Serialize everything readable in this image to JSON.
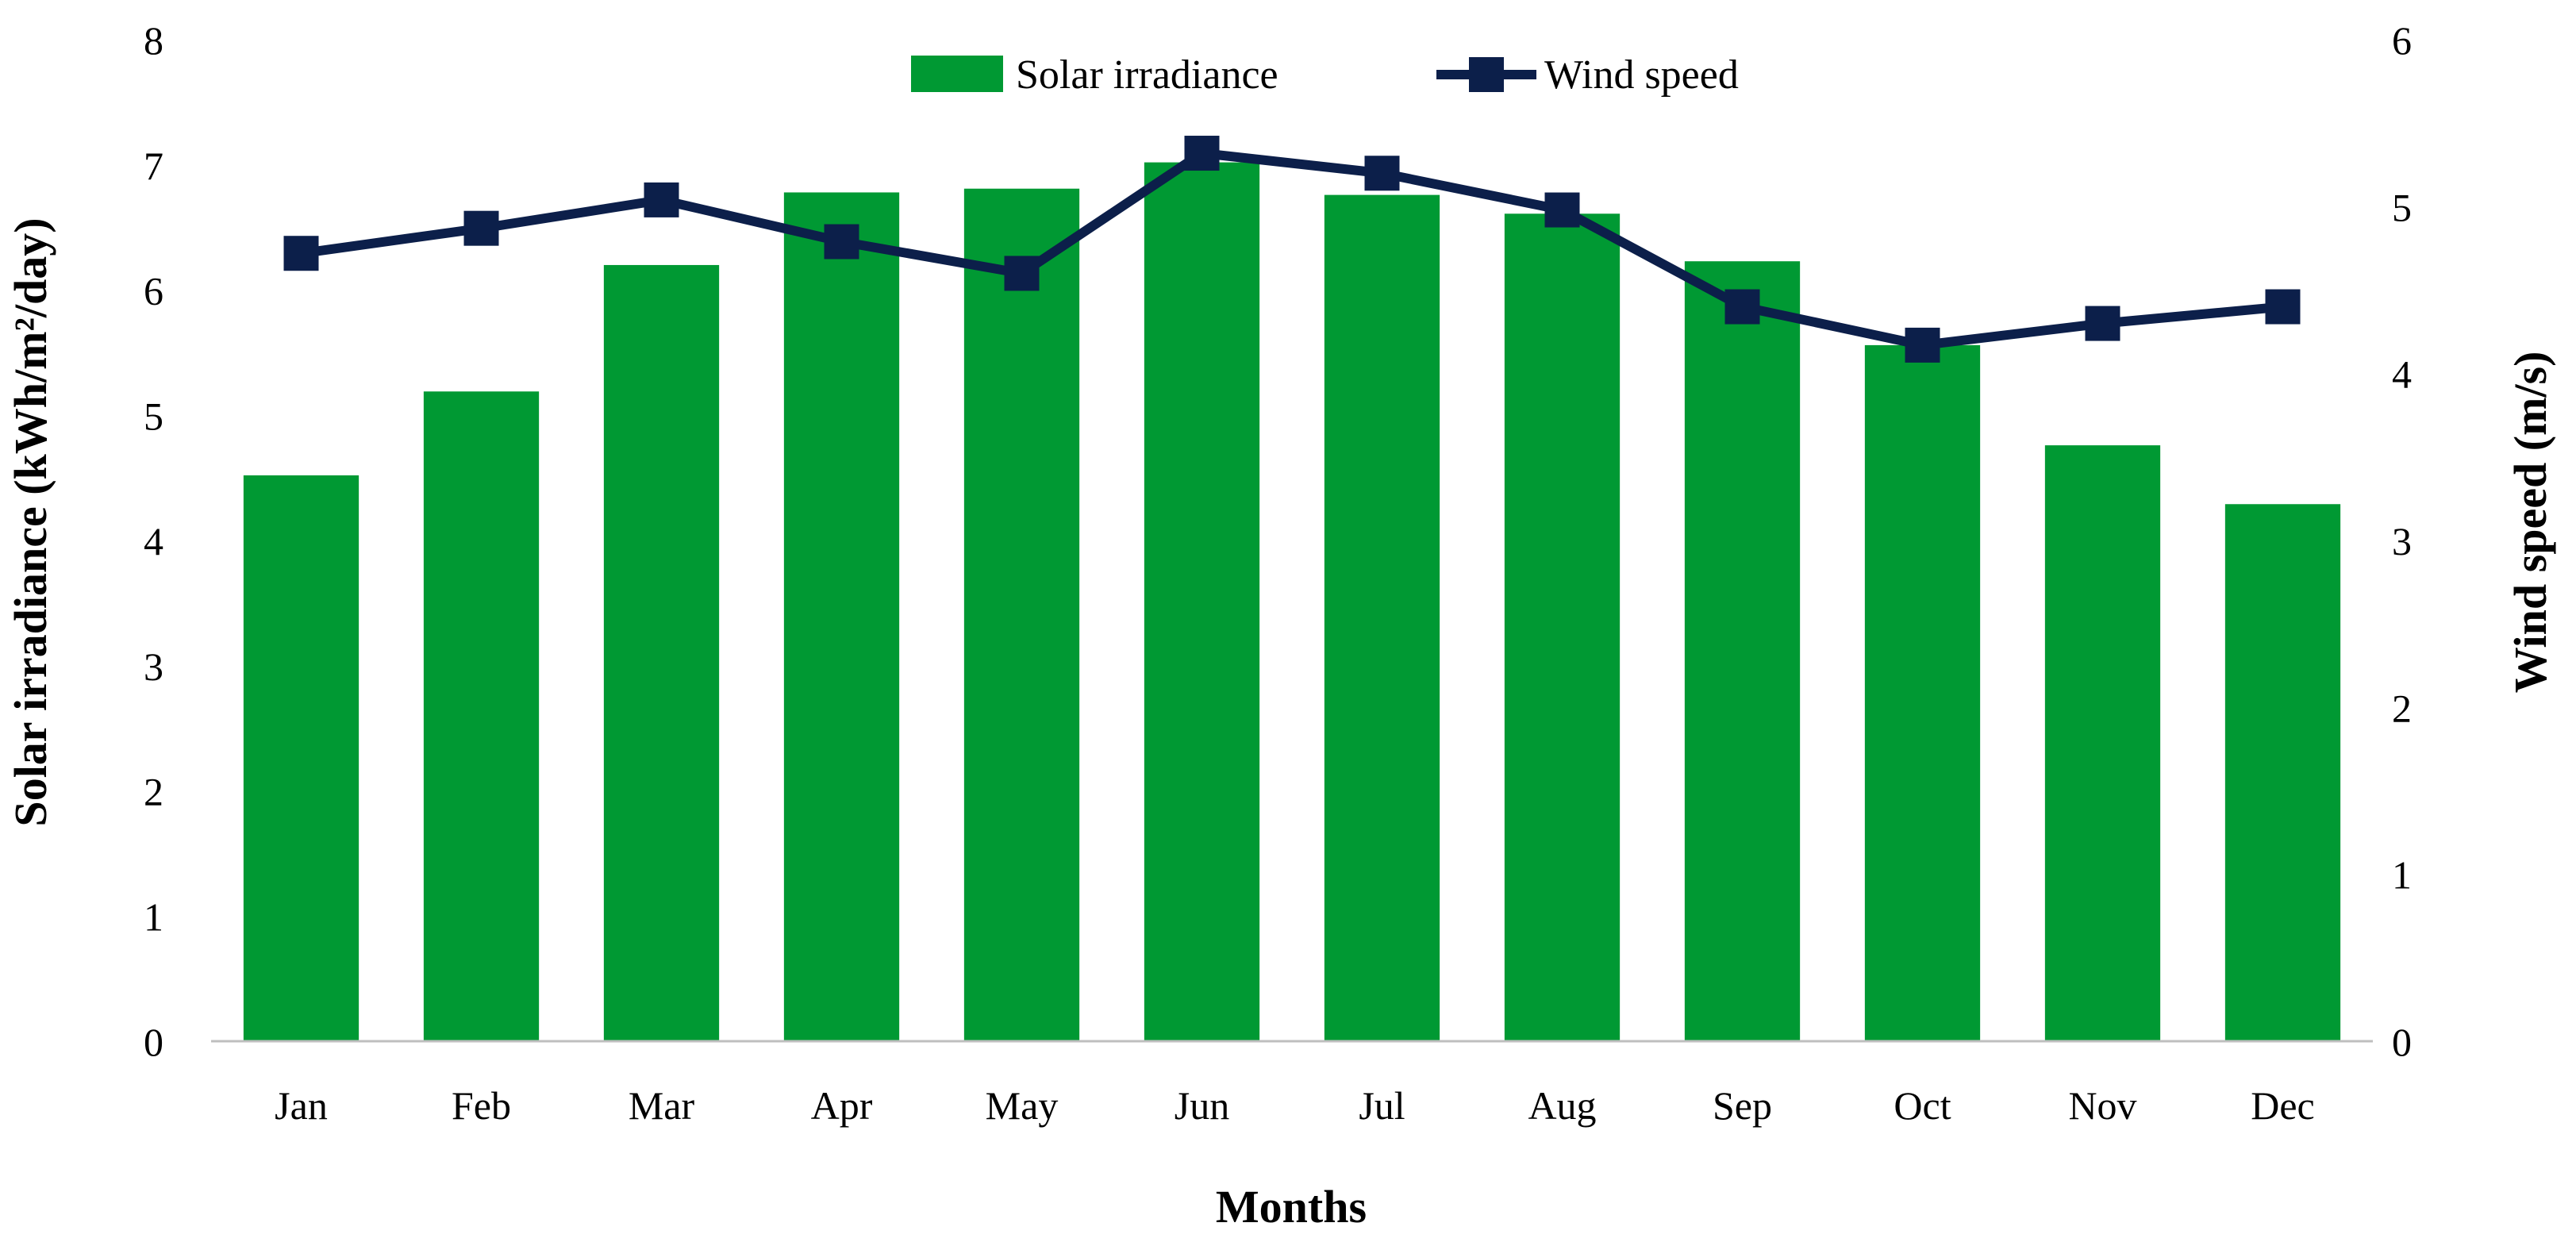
{
  "chart_data": {
    "type": "bar",
    "categories": [
      "Jan",
      "Feb",
      "Mar",
      "Apr",
      "May",
      "Jun",
      "Jul",
      "Aug",
      "Sep",
      "Oct",
      "Nov",
      "Dec"
    ],
    "series": [
      {
        "name": "Solar irradiance",
        "type": "bar",
        "axis": "left",
        "color": "#009933",
        "values": [
          4.52,
          5.19,
          6.2,
          6.78,
          6.81,
          7.02,
          6.76,
          6.61,
          6.23,
          5.56,
          4.76,
          4.29
        ]
      },
      {
        "name": "Wind speed",
        "type": "line",
        "axis": "right",
        "color": "#0c1f4a",
        "marker": "square",
        "values": [
          4.72,
          4.87,
          5.04,
          4.79,
          4.6,
          5.32,
          5.2,
          4.98,
          4.4,
          4.17,
          4.3,
          4.4
        ]
      }
    ],
    "y_left": {
      "label": "Solar irradiance  (kWh/m²/day)",
      "ylim": [
        0,
        8
      ],
      "ticks": [
        "0",
        "1",
        "2",
        "3",
        "4",
        "5",
        "6",
        "7",
        "8"
      ]
    },
    "y_right": {
      "label": "Wind speed (m/s)",
      "ylim": [
        0,
        6
      ],
      "ticks": [
        "0",
        "1",
        "2",
        "3",
        "4",
        "5",
        "6"
      ]
    },
    "xlabel": "Months",
    "legend": {
      "position": "top-center",
      "items": [
        "Solar irradiance",
        "Wind speed"
      ]
    },
    "grid": false
  }
}
